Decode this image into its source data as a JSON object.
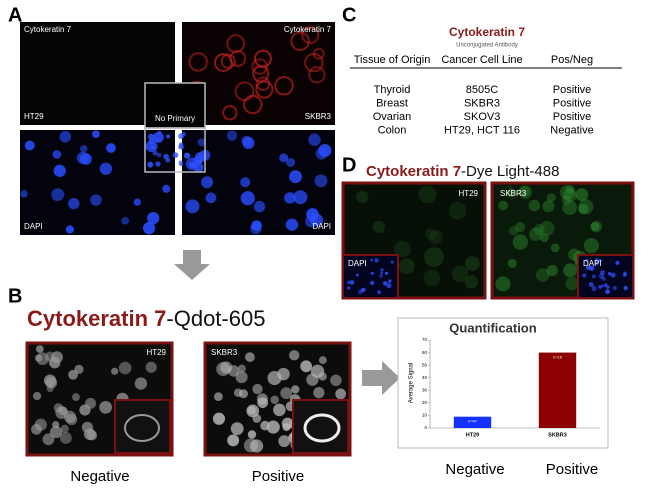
{
  "panel_a": {
    "label": "A",
    "images": [
      {
        "stain": "Cytokeratin 7",
        "cell_line": "HT29"
      },
      {
        "stain": "Cytokeratin 7",
        "cell_line": "SKBR3"
      },
      {
        "stain": "DAPI"
      },
      {
        "stain": "DAPI"
      }
    ],
    "inset": "No Primary"
  },
  "panel_b": {
    "label": "B",
    "title_marker": "Cytokeratin 7",
    "title_rest": "-Qdot-605",
    "images": [
      "HT29",
      "SKBR3"
    ],
    "captions": [
      "Negative",
      "Positive"
    ]
  },
  "panel_c": {
    "label": "C",
    "title": "Cytokeratin 7",
    "subtitle": "Unconjugated Antibody",
    "table": {
      "header": [
        "Tissue of Origin",
        "Cancer Cell Line",
        "Pos/Neg"
      ],
      "rows": [
        [
          "Thyroid",
          "8505C",
          "Positive"
        ],
        [
          "Breast",
          "SKBR3",
          "Positive"
        ],
        [
          "Ovarian",
          "SKOV3",
          "Positive"
        ],
        [
          "Colon",
          "HT29, HCT 116",
          "Negative"
        ]
      ]
    }
  },
  "panel_d": {
    "label": "D",
    "title_marker": "Cytokeratin 7",
    "title_rest": "-Dye Light-488",
    "images": [
      "HT29",
      "SKBR3"
    ],
    "inset": "DAPI"
  },
  "chart_data": {
    "type": "bar",
    "title": "Quantification",
    "y_label": "Average Signal",
    "categories": [
      "HT29",
      "SKBR3"
    ],
    "values": [
      9,
      60
    ],
    "colors": [
      "#1530ff",
      "#8b0000"
    ],
    "annotations": [
      "n=47",
      "n=16"
    ],
    "ylim": [
      0,
      70
    ],
    "yticks": [
      0,
      10,
      20,
      30,
      40,
      50,
      60,
      70
    ],
    "captions": [
      "Negative",
      "Positive"
    ]
  }
}
